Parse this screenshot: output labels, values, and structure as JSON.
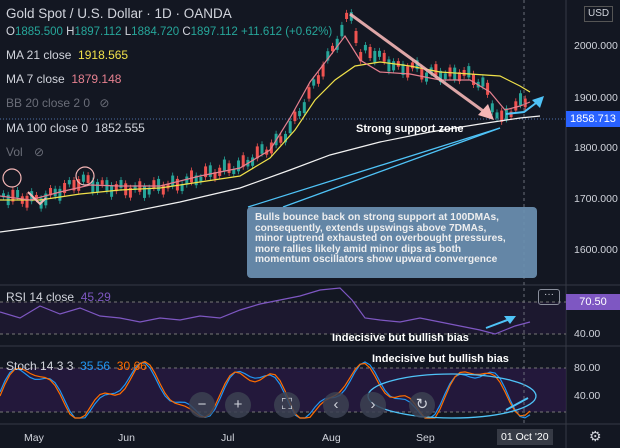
{
  "header": {
    "symbol_title": "Gold Spot / U.S. Dollar · 1D · OANDA",
    "ohlc": {
      "o": "1885.500",
      "h": "1897.112",
      "l": "1884.720",
      "c": "1897.112",
      "change": "+11.612 (+0.62%)"
    },
    "currency": "USD"
  },
  "indicators": {
    "ma21": {
      "label": "MA 21 close",
      "value": "1918.565"
    },
    "ma7": {
      "label": "MA 7 close",
      "value": "1879.148"
    },
    "bb": {
      "label": "BB 20 close 2 0"
    },
    "ma100": {
      "label": "MA 100 close 0",
      "value": "1852.555"
    },
    "vol": {
      "label": "Vol"
    }
  },
  "price_axis": {
    "ticks": [
      "2000.000",
      "1900.000",
      "1800.000",
      "1700.000",
      "1600.000"
    ],
    "current_price": "1858.713"
  },
  "annotations": {
    "support": "Strong support zone",
    "callout_lines": [
      "Bulls bounce back on strong support at 100DMAs,",
      "consequently, extends upswings above 7DMAs,",
      "minor uptrend exhausted on overbought pressures,",
      "more rallies likely amid minor dips as both",
      "momentum oscillators show upward convergence"
    ],
    "rsi_note": "Indecisive but bullish bias",
    "stoch_note": "Indecisive but bullish bias"
  },
  "rsi": {
    "label": "RSI 14 close",
    "value": "45.29",
    "axis_tag": "70.50",
    "axis_tick": "40.00"
  },
  "stoch": {
    "label": "Stoch 14 3 3",
    "k": "35.56",
    "d": "30.66",
    "axis_ticks": [
      "80.00",
      "40.00"
    ]
  },
  "time_axis": {
    "labels": [
      "May",
      "Jun",
      "Jul",
      "Aug",
      "Sep"
    ],
    "cursor_date": "01 Oct '20"
  },
  "controls": [
    "zoom-out",
    "zoom-in",
    "fullscreen",
    "scroll-left",
    "scroll-right",
    "reset"
  ],
  "colors": {
    "background": "#131722",
    "up": "#26a69a",
    "down": "#ef5350",
    "ma21": "#f0e14a",
    "ma7": "#e5808f",
    "ma100": "#f2f2f2",
    "rsi": "#7e57c2",
    "stoch_k": "#2196f3",
    "stoch_d": "#ff6d00",
    "annotation": "#4fc3f7",
    "callout": "#6b8fb0",
    "trend_arrow": "#f4b6b6"
  }
}
